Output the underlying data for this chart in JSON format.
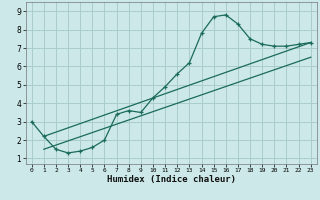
{
  "xlabel": "Humidex (Indice chaleur)",
  "bg_color": "#cce8e8",
  "grid_color": "#aacccc",
  "line_color": "#1a6b5a",
  "xlim": [
    -0.5,
    23.5
  ],
  "ylim": [
    0.7,
    9.5
  ],
  "xticks": [
    0,
    1,
    2,
    3,
    4,
    5,
    6,
    7,
    8,
    9,
    10,
    11,
    12,
    13,
    14,
    15,
    16,
    17,
    18,
    19,
    20,
    21,
    22,
    23
  ],
  "yticks": [
    1,
    2,
    3,
    4,
    5,
    6,
    7,
    8,
    9
  ],
  "line1_x": [
    0,
    1,
    2,
    3,
    4,
    5,
    6,
    7,
    8,
    9,
    10,
    11,
    12,
    13,
    14,
    15,
    16,
    17,
    18,
    19,
    20,
    21,
    22,
    23
  ],
  "line1_y": [
    3.0,
    2.2,
    1.5,
    1.3,
    1.4,
    1.6,
    2.0,
    3.4,
    3.6,
    3.5,
    4.3,
    4.9,
    5.6,
    6.2,
    7.8,
    8.7,
    8.8,
    8.3,
    7.5,
    7.2,
    7.1,
    7.1,
    7.2,
    7.3
  ],
  "line2_x": [
    1,
    23
  ],
  "line2_y": [
    2.2,
    7.3
  ],
  "line3_x": [
    1,
    23
  ],
  "line3_y": [
    1.5,
    6.5
  ]
}
